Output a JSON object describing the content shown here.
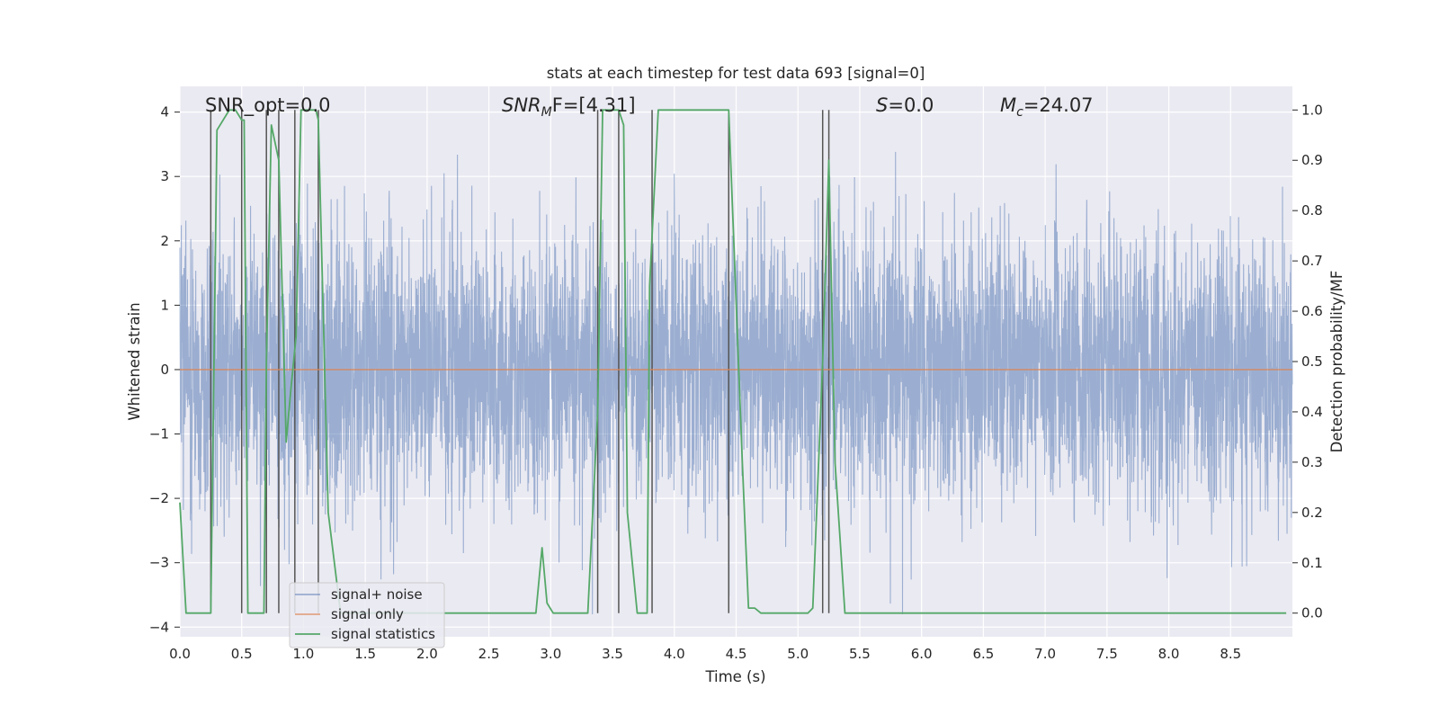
{
  "chart_data": {
    "type": "line",
    "title": "stats at each timestep for test data 693 [signal=0]",
    "xlabel": "Time (s)",
    "ylabel_left": "Whitened strain",
    "ylabel_right": "Detection probability/MF",
    "xlim": [
      0.0,
      9.0
    ],
    "ylim_left": [
      -4.15,
      4.4
    ],
    "ylim_right": [
      -0.047,
      1.047
    ],
    "x_ticks": [
      "0.0",
      "0.5",
      "1.0",
      "1.5",
      "2.0",
      "2.5",
      "3.0",
      "3.5",
      "4.0",
      "4.5",
      "5.0",
      "5.5",
      "6.0",
      "6.5",
      "7.0",
      "7.5",
      "8.0",
      "8.5"
    ],
    "y_ticks_left": [
      "-4",
      "-3",
      "-2",
      "-1",
      "0",
      "1",
      "2",
      "3",
      "4"
    ],
    "y_ticks_right": [
      "0.0",
      "0.1",
      "0.2",
      "0.3",
      "0.4",
      "0.5",
      "0.6",
      "0.7",
      "0.8",
      "0.9",
      "1.0"
    ],
    "grid": true,
    "annotations": {
      "snr_opt": "SNR_opt=0.0",
      "snr_mf_sym": "SNR",
      "snr_mf_sub": "M",
      "snr_mf_rest": "F=[4.31]",
      "s_sym": "S",
      "s_rest": "=0.0",
      "mc_sym": "M",
      "mc_sub": "c",
      "mc_rest": "=24.07"
    },
    "legend": {
      "position": "lower-left",
      "entries": [
        "signal+ noise",
        "signal only",
        "signal statistics"
      ]
    },
    "series": [
      {
        "name": "signal+ noise",
        "axis": "left",
        "color": "#4c72b0",
        "style": "dense noise",
        "envelope_min": -3.8,
        "envelope_max": 3.95,
        "x_range": [
          0.0,
          9.0
        ]
      },
      {
        "name": "signal only",
        "axis": "left",
        "color": "#dd8452",
        "x": [
          0.0,
          9.0
        ],
        "y": [
          0.0,
          0.0
        ]
      },
      {
        "name": "signal statistics",
        "axis": "right",
        "color": "#55a868",
        "x": [
          0.0,
          0.05,
          0.25,
          0.3,
          0.4,
          0.45,
          0.5,
          0.52,
          0.55,
          0.6,
          0.68,
          0.7,
          0.74,
          0.8,
          0.86,
          0.9,
          0.94,
          0.98,
          1.1,
          1.12,
          1.2,
          1.3,
          1.5,
          2.5,
          2.88,
          2.93,
          2.97,
          3.02,
          3.1,
          3.3,
          3.38,
          3.42,
          3.46,
          3.55,
          3.59,
          3.62,
          3.7,
          3.78,
          3.8,
          3.87,
          4.0,
          4.1,
          4.3,
          4.44,
          4.55,
          4.6,
          4.65,
          4.7,
          5.0,
          5.08,
          5.12,
          5.2,
          5.25,
          5.3,
          5.38,
          5.45,
          6.0,
          7.0,
          8.0,
          8.95
        ],
        "y": [
          0.22,
          0.0,
          0.0,
          0.96,
          1.0,
          1.0,
          0.98,
          0.98,
          0.0,
          0.0,
          0.0,
          0.5,
          0.97,
          0.9,
          0.34,
          0.45,
          0.55,
          1.0,
          1.0,
          0.98,
          0.2,
          0.0,
          0.0,
          0.0,
          0.0,
          0.13,
          0.02,
          0.0,
          0.0,
          0.0,
          0.4,
          1.0,
          1.0,
          1.0,
          0.97,
          0.2,
          0.0,
          0.0,
          0.65,
          1.0,
          1.0,
          1.0,
          1.0,
          1.0,
          0.3,
          0.01,
          0.01,
          0.0,
          0.0,
          0.0,
          0.01,
          0.5,
          0.9,
          0.3,
          0.0,
          0.0,
          0.0,
          0.0,
          0.0,
          0.0
        ]
      }
    ],
    "vertical_markers": {
      "color": "#555555",
      "x": [
        0.25,
        0.5,
        0.7,
        0.8,
        0.93,
        1.12,
        3.38,
        3.55,
        3.82,
        4.44,
        5.2,
        5.25
      ]
    }
  }
}
